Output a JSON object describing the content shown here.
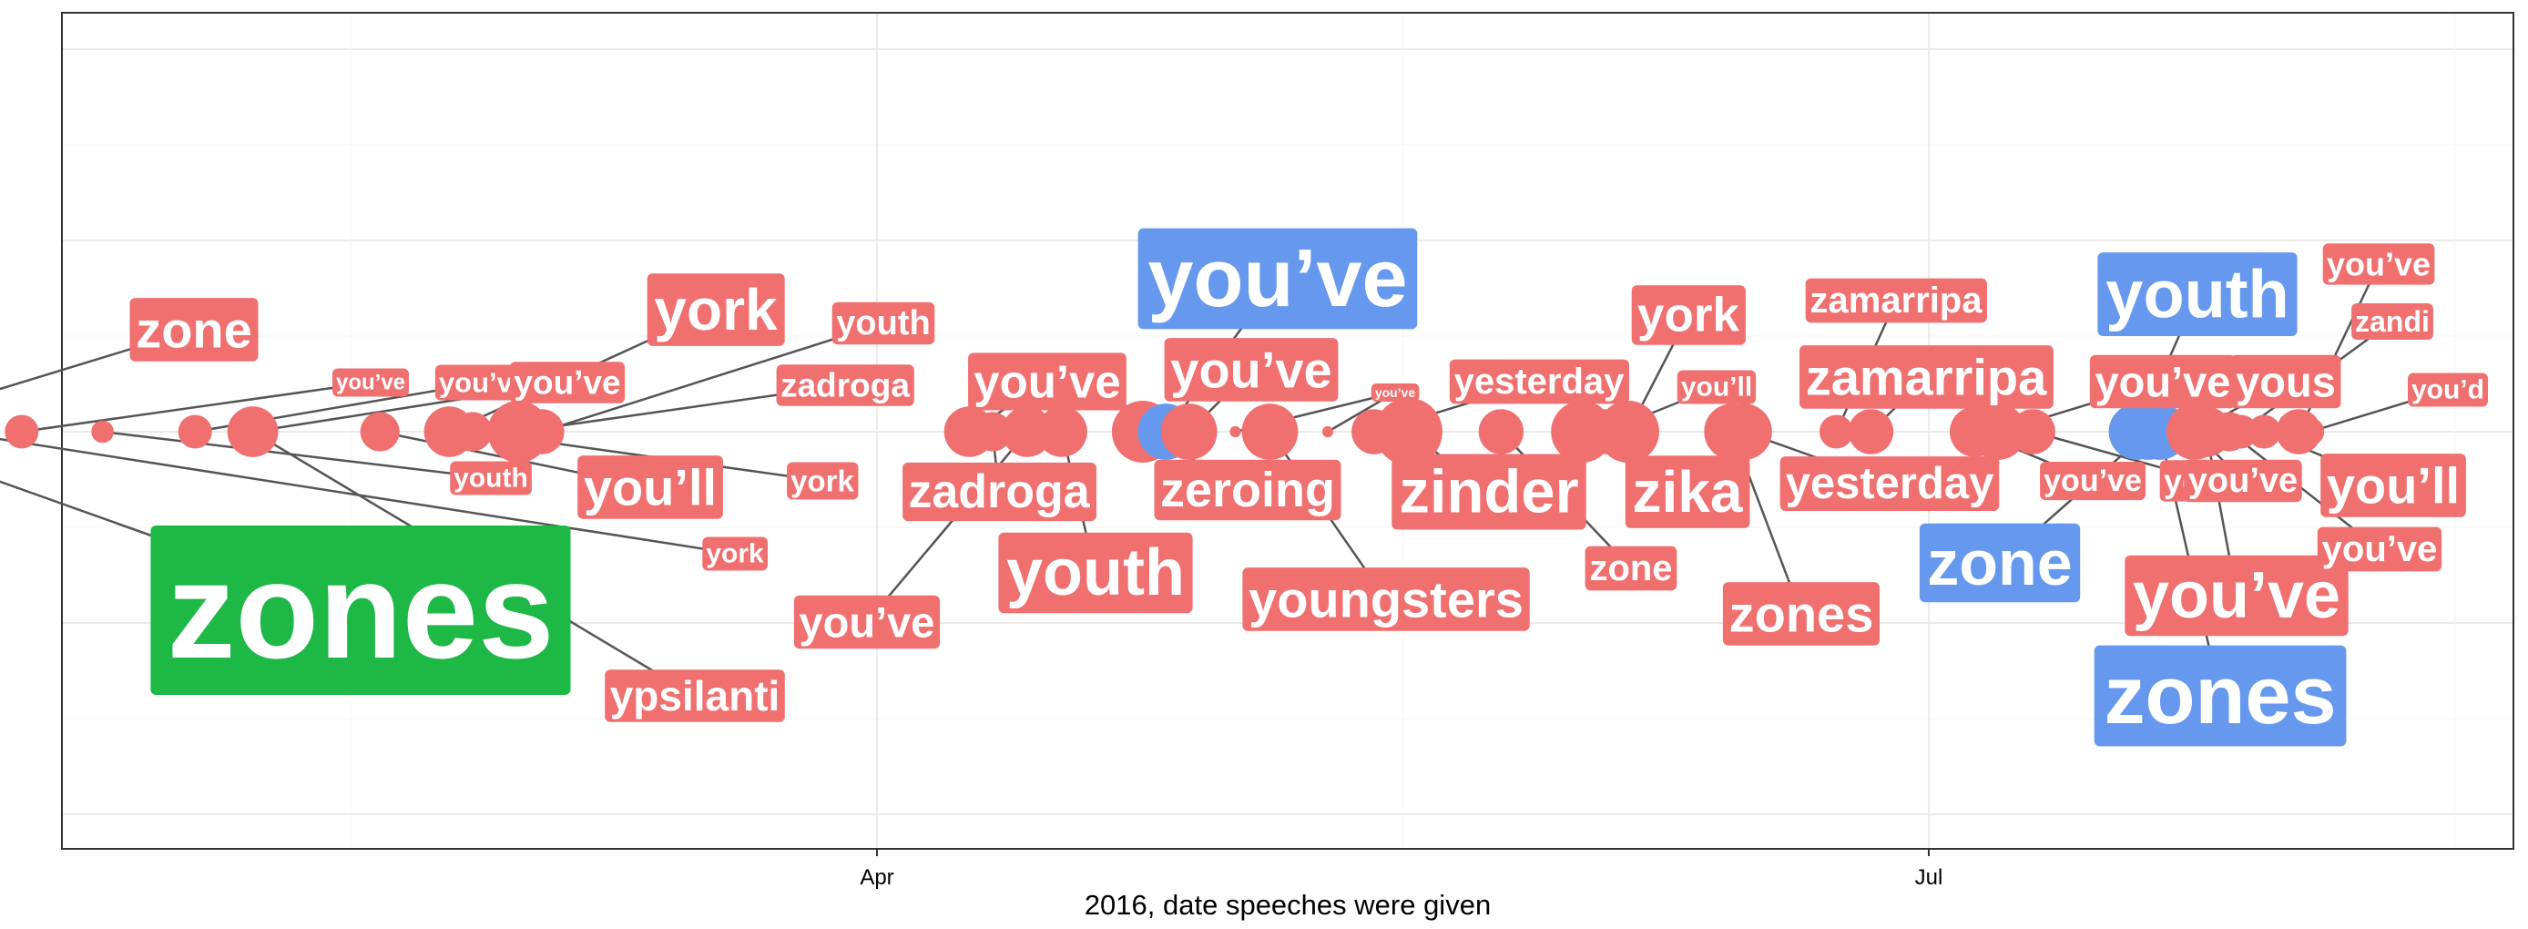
{
  "chart_data": {
    "type": "scatter",
    "xlabel": "2016, date speeches were given",
    "x_ticks": [
      "Apr",
      "Jul"
    ],
    "grid": true,
    "legend": "none",
    "colors": {
      "red": "#f07070",
      "blue": "#6699ee",
      "green": "#1eb846"
    },
    "points": [
      {
        "date": "2016-01-04",
        "size": 28,
        "color": "green",
        "word": "zones",
        "label_size": 150
      },
      {
        "date": "2016-01-04",
        "size": 28,
        "color": "red",
        "word": "zone",
        "label_size": 56
      },
      {
        "date": "2016-01-12",
        "size": 5,
        "color": "red",
        "word": "york",
        "label_size": 30
      },
      {
        "date": "2016-01-18",
        "size": 5,
        "color": "red",
        "word": "you've",
        "label_size": 24
      },
      {
        "date": "2016-01-25",
        "size": 3,
        "color": "red",
        "word": "youth",
        "label_size": 30
      },
      {
        "date": "2016-02-02",
        "size": 5,
        "color": "red",
        "word": "you've",
        "label_size": 31
      },
      {
        "date": "2016-02-07",
        "size": 8,
        "color": "red",
        "word": "you've",
        "label_size": 37
      },
      {
        "date": "2016-02-07",
        "size": 8,
        "color": "red",
        "word": "ypsilanti",
        "label_size": 46
      },
      {
        "date": "2016-02-18",
        "size": 6,
        "color": "red",
        "word": "you'll",
        "label_size": 56
      },
      {
        "date": "2016-02-24",
        "size": 8,
        "color": "red",
        "word": "york",
        "label_size": 64
      },
      {
        "date": "2016-02-26",
        "size": 6,
        "color": "red",
        "word": "york",
        "label_size": 33
      },
      {
        "date": "2016-03-01",
        "size": 10,
        "color": "red",
        "word": "zadroga",
        "label_size": 37
      },
      {
        "date": "2016-03-03",
        "size": 7,
        "color": "red",
        "word": "youth",
        "label_size": 38
      },
      {
        "date": "2016-04-09",
        "size": 8,
        "color": "red",
        "word": "you've",
        "label_size": 51
      },
      {
        "date": "2016-04-11",
        "size": 6,
        "color": "red",
        "word": "zadroga",
        "label_size": 52
      },
      {
        "date": "2016-04-14",
        "size": 8,
        "color": "red",
        "word": "you've",
        "label_size": 47
      },
      {
        "date": "2016-04-17",
        "size": 8,
        "color": "red",
        "word": "youth",
        "label_size": 72
      },
      {
        "date": "2016-04-24",
        "size": 10,
        "color": "red",
        "word": "zeroing",
        "label_size": 54
      },
      {
        "date": "2016-04-26",
        "size": 9,
        "color": "blue",
        "word": "you've",
        "label_size": 90
      },
      {
        "date": "2016-04-28",
        "size": 9,
        "color": "red",
        "word": "you've",
        "label_size": 56
      },
      {
        "date": "2016-05-02",
        "size": 1,
        "color": "red",
        "word": "you've",
        "label_size": 14
      },
      {
        "date": "2016-05-05",
        "size": 9,
        "color": "red",
        "word": "youngsters",
        "label_size": 56
      },
      {
        "date": "2016-05-10",
        "size": 1,
        "color": "red",
        "word": "you've",
        "label_size": 14
      },
      {
        "date": "2016-05-14",
        "size": 7,
        "color": "red",
        "word": "yesterday",
        "label_size": 40
      },
      {
        "date": "2016-05-17",
        "size": 11,
        "color": "red",
        "word": "zinder",
        "label_size": 67
      },
      {
        "date": "2016-05-25",
        "size": 7,
        "color": "red",
        "word": "zone",
        "label_size": 40
      },
      {
        "date": "2016-06-01",
        "size": 10,
        "color": "red",
        "word": "zika",
        "label_size": 64
      },
      {
        "date": "2016-06-03",
        "size": 7,
        "color": "red",
        "word": "you'll",
        "label_size": 30
      },
      {
        "date": "2016-06-05",
        "size": 10,
        "color": "red",
        "word": "york",
        "label_size": 53
      },
      {
        "date": "2016-06-14",
        "size": 9,
        "color": "red",
        "word": "zones",
        "label_size": 56
      },
      {
        "date": "2016-06-15",
        "size": 9,
        "color": "red",
        "word": "yesterday",
        "label_size": 49
      },
      {
        "date": "2016-06-23",
        "size": 5,
        "color": "red",
        "word": "zamarripa",
        "label_size": 40
      },
      {
        "date": "2016-06-26",
        "size": 7,
        "color": "red",
        "word": "zamarripa",
        "label_size": 56
      },
      {
        "date": "2016-07-05",
        "size": 8,
        "color": "red",
        "word": "you've",
        "label_size": 34
      },
      {
        "date": "2016-07-07",
        "size": 9,
        "color": "red",
        "word": "you've",
        "label_size": 47
      },
      {
        "date": "2016-07-10",
        "size": 7,
        "color": "red",
        "word": "youth",
        "label_size": 36
      },
      {
        "date": "2016-07-19",
        "size": 9,
        "color": "blue",
        "word": "youth",
        "label_size": 74
      },
      {
        "date": "2016-07-20",
        "size": 9,
        "color": "blue",
        "word": "zone",
        "label_size": 70
      },
      {
        "date": "2016-07-21",
        "size": 9,
        "color": "blue",
        "word": "zones",
        "label_size": 90
      },
      {
        "date": "2016-07-24",
        "size": 9,
        "color": "red",
        "word": "you've",
        "label_size": 38
      },
      {
        "date": "2016-07-24",
        "size": 8,
        "color": "red",
        "word": "yous",
        "label_size": 47
      },
      {
        "date": "2016-07-25",
        "size": 8,
        "color": "red",
        "word": "you've",
        "label_size": 72
      },
      {
        "date": "2016-07-27",
        "size": 6,
        "color": "red",
        "word": "you've",
        "label_size": 40
      },
      {
        "date": "2016-07-28",
        "size": 5,
        "color": "red",
        "word": "zandi",
        "label_size": 32
      },
      {
        "date": "2016-07-30",
        "size": 5,
        "color": "red",
        "word": "you'll",
        "label_size": 56
      },
      {
        "date": "2016-08-02",
        "size": 7,
        "color": "red",
        "word": "you've",
        "label_size": 36
      },
      {
        "date": "2016-08-03",
        "size": 4,
        "color": "red",
        "word": "you'd",
        "label_size": 30
      }
    ]
  }
}
